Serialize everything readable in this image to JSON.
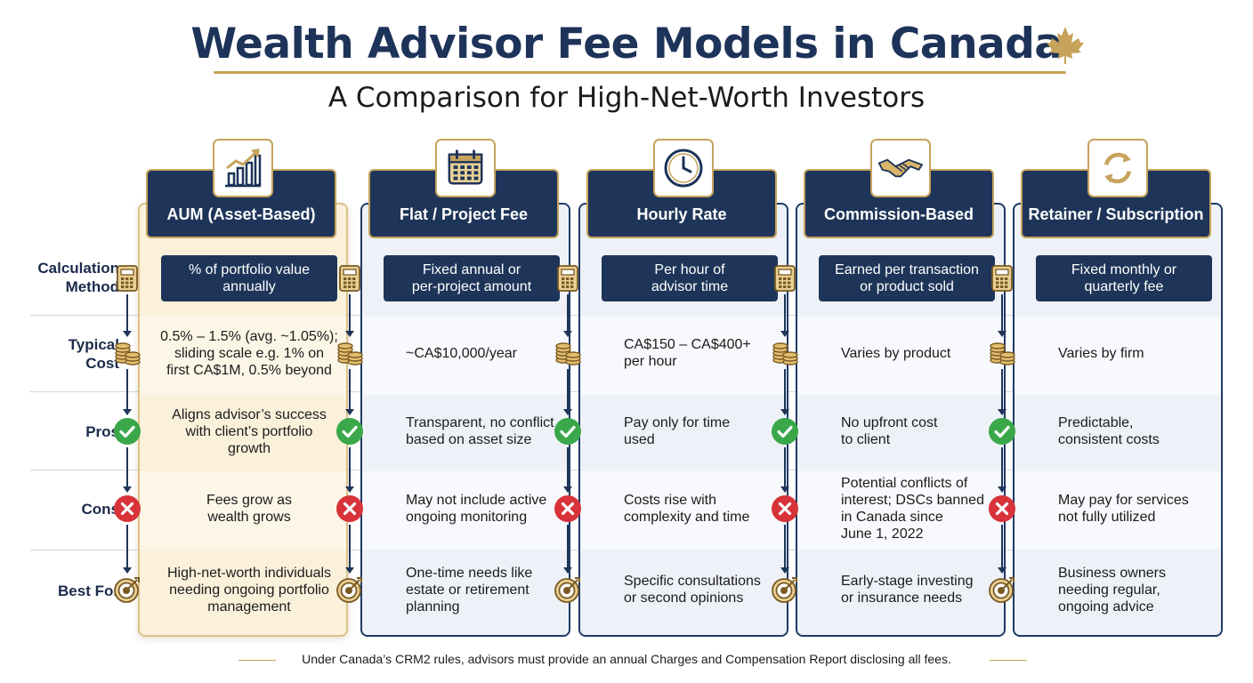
{
  "header": {
    "title": "Wealth Advisor Fee Models in Canada",
    "subtitle": "A Comparison for High-Net-Worth Investors",
    "emblem_icon": "maple-leaf-icon"
  },
  "rows": [
    "Calculation Method",
    "Typical Cost",
    "Pros",
    "Cons",
    "Best For"
  ],
  "row_label_parts": [
    [
      "Calculation",
      "Method"
    ],
    [
      "Typical",
      "Cost"
    ],
    [
      "Pros"
    ],
    [
      "Cons"
    ],
    [
      "Best For"
    ]
  ],
  "columns": [
    {
      "name": "AUM (Asset-Based)",
      "icon": "growth-chart-icon",
      "highlighted": true,
      "calculation": [
        "% of portfolio value",
        "annually"
      ],
      "cost": [
        "0.5% – 1.5% (avg. ~1.05%);",
        "sliding scale e.g. 1% on",
        "first CA$1M, 0.5% beyond"
      ],
      "pros": [
        "Aligns advisor’s success",
        "with client’s portfolio",
        "growth"
      ],
      "cons": [
        "Fees grow as",
        "wealth grows"
      ],
      "best_for": [
        "High-net-worth individuals",
        "needing ongoing portfolio",
        "management"
      ]
    },
    {
      "name": "Flat / Project Fee",
      "icon": "calendar-icon",
      "highlighted": false,
      "calculation": [
        "Fixed annual or",
        "per-project amount"
      ],
      "cost": [
        "~CA$10,000/year"
      ],
      "pros": [
        "Transparent, no conflict",
        "based on asset size"
      ],
      "cons": [
        "May not include active",
        "ongoing monitoring"
      ],
      "best_for": [
        "One-time needs like",
        "estate or retirement",
        "planning"
      ]
    },
    {
      "name": "Hourly Rate",
      "icon": "clock-icon",
      "highlighted": false,
      "calculation": [
        "Per hour of",
        "advisor time"
      ],
      "cost": [
        "CA$150 – CA$400+",
        "per hour"
      ],
      "pros": [
        "Pay only for time",
        "used"
      ],
      "cons": [
        "Costs rise with",
        "complexity and time"
      ],
      "best_for": [
        "Specific consultations",
        "or second opinions"
      ]
    },
    {
      "name": "Commission-Based",
      "icon": "handshake-icon",
      "highlighted": false,
      "calculation": [
        "Earned per transaction",
        "or product sold"
      ],
      "cost": [
        "Varies by product"
      ],
      "pros": [
        "No upfront cost",
        "to client"
      ],
      "cons": [
        "Potential conflicts of",
        "interest; DSCs banned",
        "in Canada since",
        "June 1, 2022"
      ],
      "best_for": [
        "Early-stage investing",
        "or insurance needs"
      ]
    },
    {
      "name": "Retainer / Subscription",
      "icon": "refresh-cycle-icon",
      "highlighted": false,
      "calculation": [
        "Fixed monthly or",
        "quarterly fee"
      ],
      "cost": [
        "Varies by firm"
      ],
      "pros": [
        "Predictable,",
        "consistent costs"
      ],
      "cons": [
        "May pay for services",
        "not fully utilized"
      ],
      "best_for": [
        "Business owners",
        "needing regular,",
        "ongoing advice"
      ]
    }
  ],
  "row_icons": [
    "calculator-icon",
    "coin-stack-icon",
    "check-circle-icon",
    "x-circle-icon",
    "target-icon"
  ],
  "colors": {
    "navy": "#1e3559",
    "gold": "#c7a35d",
    "highlight_bg": "#fbf1db",
    "check_green": "#3aa84a",
    "cross_red": "#d8333a"
  },
  "footer": "Under Canada’s CRM2 rules, advisors must provide an annual Charges and Compensation Report disclosing all fees."
}
